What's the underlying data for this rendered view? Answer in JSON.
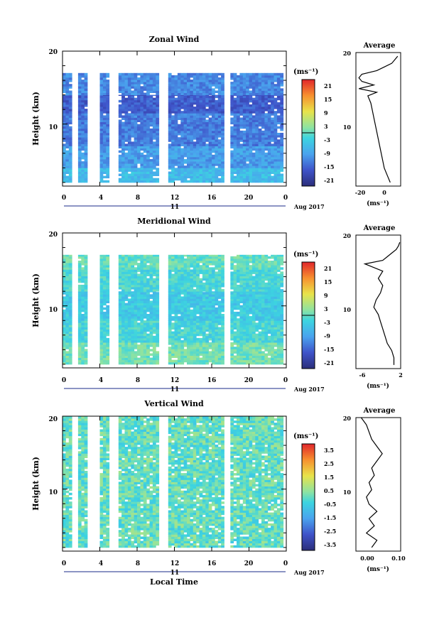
{
  "panels": [
    {
      "title": "Zonal Wind",
      "ylabel": "Height (km)",
      "unit": "(ms⁻¹)",
      "colorbar_ticks": [
        "21",
        "15",
        "9",
        "3",
        "-3",
        "-9",
        "-15",
        "-21"
      ],
      "avg_title": "Average",
      "avg_xticks": [
        "-20",
        "0"
      ],
      "avg_xlabel": "(ms⁻¹)",
      "date_label": "Aug 2017",
      "day_label": "11"
    },
    {
      "title": "Meridional Wind",
      "ylabel": "Height (km)",
      "unit": "(ms⁻¹)",
      "colorbar_ticks": [
        "21",
        "15",
        "9",
        "3",
        "-3",
        "-9",
        "-15",
        "-21"
      ],
      "avg_title": "Average",
      "avg_xticks": [
        "-6",
        "2"
      ],
      "avg_xlabel": "(ms⁻¹)",
      "date_label": "Aug 2017",
      "day_label": "11"
    },
    {
      "title": "Vertical Wind",
      "ylabel": "Height (km)",
      "unit": "(ms⁻¹)",
      "colorbar_ticks": [
        "3.5",
        "2.5",
        "1.5",
        "0.5",
        "-0.5",
        "-1.5",
        "-2.5",
        "-3.5"
      ],
      "avg_title": "Average",
      "avg_xticks": [
        "0.00",
        "0.10"
      ],
      "avg_xlabel": "(ms⁻¹)",
      "date_label": "Aug 2017",
      "day_label": "11",
      "xlabel": "Local Time"
    }
  ],
  "chart_data": [
    {
      "type": "heatmap",
      "title": "Zonal Wind",
      "xlabel": "",
      "ylabel": "Height (km)",
      "x_ticks": [
        "0",
        "4",
        "8",
        "12",
        "16",
        "20",
        "0"
      ],
      "y_ticks": [
        "10",
        "20"
      ],
      "xlim": [
        0,
        24
      ],
      "ylim": [
        1.5,
        20
      ],
      "color_range": [
        -24,
        24
      ],
      "data_gaps_hours": [
        [
          1.0,
          1.5
        ],
        [
          2.8,
          3.7
        ],
        [
          5.3,
          5.9
        ],
        [
          10.6,
          11.3
        ],
        [
          17.5,
          17.9
        ]
      ],
      "layers": [
        {
          "bottom": 2,
          "top": 4,
          "value": -6
        },
        {
          "bottom": 4,
          "top": 7,
          "value": -10
        },
        {
          "bottom": 7,
          "top": 11.5,
          "value": -13
        },
        {
          "bottom": 11.5,
          "top": 14,
          "value": -16
        },
        {
          "bottom": 14,
          "top": 17,
          "value": -12
        }
      ],
      "average_profile": {
        "xlim": [
          -24,
          6
        ],
        "height": [
          2,
          3,
          4,
          5,
          6,
          7,
          8,
          9,
          10,
          11,
          12,
          13,
          14,
          14.5,
          15,
          15.5,
          16,
          16.5,
          17,
          17.5,
          18,
          18.5,
          19,
          19.5
        ],
        "value": [
          -1,
          -3,
          -5,
          -6,
          -7,
          -8,
          -9,
          -10,
          -11,
          -12,
          -13,
          -14,
          -16,
          -10,
          -22,
          -12,
          -20,
          -22,
          -20,
          -10,
          -5,
          0,
          2,
          4
        ]
      }
    },
    {
      "type": "heatmap",
      "title": "Meridional Wind",
      "xlabel": "",
      "ylabel": "Height (km)",
      "x_ticks": [
        "0",
        "4",
        "8",
        "12",
        "16",
        "20",
        "0"
      ],
      "y_ticks": [
        "10",
        "20"
      ],
      "xlim": [
        0,
        24
      ],
      "ylim": [
        1.5,
        20
      ],
      "color_range": [
        -24,
        24
      ],
      "data_gaps_hours": [
        [
          1.0,
          1.5
        ],
        [
          2.8,
          3.7
        ],
        [
          5.3,
          5.9
        ],
        [
          10.6,
          11.3
        ],
        [
          17.5,
          17.9
        ]
      ],
      "layers": [
        {
          "bottom": 2,
          "top": 5,
          "value": 1
        },
        {
          "bottom": 5,
          "top": 8,
          "value": -2
        },
        {
          "bottom": 8,
          "top": 12,
          "value": -4
        },
        {
          "bottom": 12,
          "top": 15,
          "value": -2
        },
        {
          "bottom": 15,
          "top": 17,
          "value": 0
        }
      ],
      "average_profile": {
        "xlim": [
          -8,
          2
        ],
        "height": [
          2,
          3,
          4,
          5,
          6,
          7,
          8,
          9,
          10,
          11,
          12,
          13,
          14,
          15,
          16,
          16.5,
          17,
          17.5,
          18,
          18.5,
          19
        ],
        "value": [
          0.5,
          0.5,
          0,
          -1,
          -1.5,
          -2,
          -2.5,
          -3,
          -4,
          -3.5,
          -2.5,
          -2,
          -3,
          -2,
          -6,
          -2,
          -1,
          0,
          1,
          1.5,
          1.8
        ]
      }
    },
    {
      "type": "heatmap",
      "title": "Vertical Wind",
      "xlabel": "Local Time",
      "ylabel": "Height (km)",
      "x_ticks": [
        "0",
        "4",
        "8",
        "12",
        "16",
        "20",
        "0"
      ],
      "y_ticks": [
        "10",
        "20"
      ],
      "xlim": [
        0,
        24
      ],
      "ylim": [
        1.5,
        20
      ],
      "color_range": [
        -4,
        4
      ],
      "data_gaps_hours": [
        [
          1.0,
          1.5
        ],
        [
          2.8,
          3.7
        ],
        [
          5.3,
          5.9
        ],
        [
          10.6,
          11.3
        ],
        [
          17.5,
          17.9
        ]
      ],
      "layers": [
        {
          "bottom": 2,
          "top": 20,
          "value": 0
        }
      ],
      "average_profile": {
        "xlim": [
          -0.02,
          0.15
        ],
        "height": [
          2,
          3,
          4,
          5,
          6,
          7,
          8,
          9,
          10,
          11,
          12,
          13,
          14,
          15,
          16,
          17,
          18,
          19,
          20
        ],
        "value": [
          0.04,
          0.06,
          0.02,
          0.05,
          0.03,
          0.06,
          0.03,
          0.02,
          0.04,
          0.03,
          0.05,
          0.04,
          0.06,
          0.08,
          0.06,
          0.04,
          0.03,
          0.02,
          0.0
        ]
      }
    }
  ]
}
